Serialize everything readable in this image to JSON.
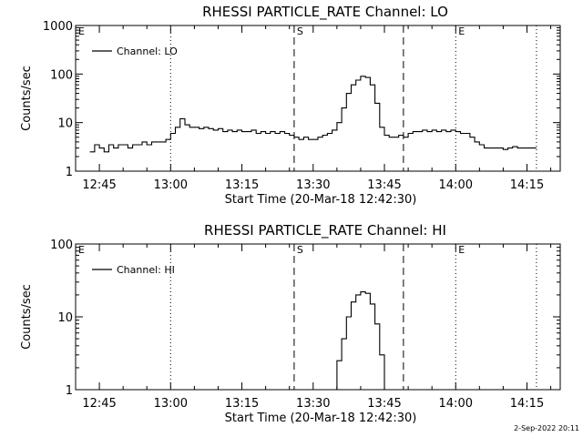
{
  "footer": {
    "timestamp": "2-Sep-2022 20:11"
  },
  "chart_data": [
    {
      "type": "line",
      "title": "RHESSI PARTICLE_RATE Channel: LO",
      "xlabel": "Start Time (20-Mar-18 12:42:30)",
      "ylabel": "Counts/sec",
      "y_scale": "log",
      "xlim": [
        "12:40",
        "14:22"
      ],
      "ylim": [
        1,
        1000
      ],
      "x_ticks": [
        "12:45",
        "13:00",
        "13:15",
        "13:30",
        "13:45",
        "14:00",
        "14:15"
      ],
      "y_ticks": [
        {
          "value": 1,
          "label": "1"
        },
        {
          "value": 10,
          "label": "10"
        },
        {
          "value": 100,
          "label": "100"
        },
        {
          "value": 1000,
          "label": "1000"
        }
      ],
      "vlines": [
        {
          "x": "13:00",
          "style": "dotted"
        },
        {
          "x": "13:26",
          "style": "dashed"
        },
        {
          "x": "13:49",
          "style": "dashed"
        },
        {
          "x": "14:00",
          "style": "dotted"
        },
        {
          "x": "14:17",
          "style": "dotted"
        }
      ],
      "markers": [
        {
          "label": "E",
          "x": "12:40"
        },
        {
          "label": "S",
          "x": "13:26"
        },
        {
          "label": "E",
          "x": "14:00"
        }
      ],
      "legend": {
        "position": "top-left"
      },
      "series": [
        {
          "name": "Channel: LO",
          "x": [
            "12:43",
            "12:44",
            "12:45",
            "12:46",
            "12:47",
            "12:48",
            "12:49",
            "12:50",
            "12:51",
            "12:52",
            "12:53",
            "12:54",
            "12:55",
            "12:56",
            "12:57",
            "12:58",
            "12:59",
            "13:00",
            "13:01",
            "13:02",
            "13:03",
            "13:04",
            "13:05",
            "13:06",
            "13:07",
            "13:08",
            "13:09",
            "13:10",
            "13:11",
            "13:12",
            "13:13",
            "13:14",
            "13:15",
            "13:16",
            "13:17",
            "13:18",
            "13:19",
            "13:20",
            "13:21",
            "13:22",
            "13:23",
            "13:24",
            "13:25",
            "13:26",
            "13:27",
            "13:28",
            "13:29",
            "13:30",
            "13:31",
            "13:32",
            "13:33",
            "13:34",
            "13:35",
            "13:36",
            "13:37",
            "13:38",
            "13:39",
            "13:40",
            "13:41",
            "13:42",
            "13:43",
            "13:44",
            "13:45",
            "13:46",
            "13:47",
            "13:48",
            "13:49",
            "13:50",
            "13:51",
            "13:52",
            "13:53",
            "13:54",
            "13:55",
            "13:56",
            "13:57",
            "13:58",
            "13:59",
            "14:00",
            "14:01",
            "14:02",
            "14:03",
            "14:04",
            "14:05",
            "14:06",
            "14:07",
            "14:08",
            "14:09",
            "14:10",
            "14:11",
            "14:12",
            "14:13",
            "14:14",
            "14:15",
            "14:16"
          ],
          "y": [
            2.5,
            3.5,
            3.0,
            2.5,
            3.5,
            3.0,
            3.5,
            3.5,
            3.0,
            3.5,
            3.5,
            4.0,
            3.5,
            4.0,
            4.0,
            4.0,
            4.5,
            6.0,
            8.0,
            12.0,
            9.0,
            8.0,
            8.0,
            7.5,
            8.0,
            7.5,
            7.0,
            7.5,
            6.5,
            7.0,
            6.5,
            7.0,
            6.5,
            6.5,
            7.0,
            6.0,
            6.5,
            6.0,
            6.5,
            6.0,
            6.5,
            6.0,
            5.5,
            5.0,
            4.5,
            5.0,
            4.5,
            4.5,
            5.0,
            5.5,
            6.0,
            7.0,
            10.0,
            20.0,
            40.0,
            60.0,
            75.0,
            90.0,
            85.0,
            60.0,
            25.0,
            8.0,
            5.5,
            5.0,
            5.0,
            5.5,
            5.0,
            6.0,
            6.5,
            6.5,
            7.0,
            6.5,
            7.0,
            6.5,
            7.0,
            6.5,
            7.0,
            6.5,
            6.0,
            6.0,
            5.0,
            4.0,
            3.5,
            3.0,
            3.0,
            3.0,
            3.0,
            2.8,
            3.0,
            3.2,
            3.0,
            3.0,
            3.0,
            3.0
          ]
        }
      ]
    },
    {
      "type": "line",
      "title": "RHESSI PARTICLE_RATE Channel: HI",
      "xlabel": "Start Time (20-Mar-18 12:42:30)",
      "ylabel": "Counts/sec",
      "y_scale": "log",
      "xlim": [
        "12:40",
        "14:22"
      ],
      "ylim": [
        1,
        100
      ],
      "x_ticks": [
        "12:45",
        "13:00",
        "13:15",
        "13:30",
        "13:45",
        "14:00",
        "14:15"
      ],
      "y_ticks": [
        {
          "value": 1,
          "label": "1"
        },
        {
          "value": 10,
          "label": "10"
        },
        {
          "value": 100,
          "label": "100"
        }
      ],
      "vlines": [
        {
          "x": "13:00",
          "style": "dotted"
        },
        {
          "x": "13:26",
          "style": "dashed"
        },
        {
          "x": "13:49",
          "style": "dashed"
        },
        {
          "x": "14:00",
          "style": "dotted"
        },
        {
          "x": "14:17",
          "style": "dotted"
        }
      ],
      "markers": [
        {
          "label": "E",
          "x": "12:40"
        },
        {
          "label": "S",
          "x": "13:26"
        },
        {
          "label": "E",
          "x": "14:00"
        }
      ],
      "legend": {
        "position": "top-left"
      },
      "series": [
        {
          "name": "Channel: HI",
          "x": [
            "13:34",
            "13:35",
            "13:36",
            "13:37",
            "13:38",
            "13:39",
            "13:40",
            "13:41",
            "13:42",
            "13:43",
            "13:44",
            "13:45"
          ],
          "y": [
            1.0,
            2.5,
            5.0,
            10.0,
            16.0,
            20.0,
            22.0,
            21.0,
            15.0,
            8.0,
            3.0,
            1.0
          ]
        }
      ]
    }
  ]
}
